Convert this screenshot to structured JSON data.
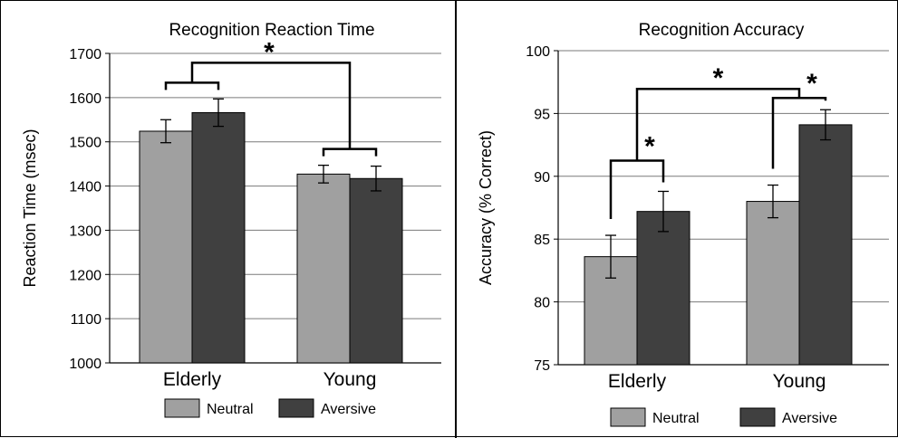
{
  "colors": {
    "neutral": "#a0a0a0",
    "aversive": "#404040",
    "grid": "#7a7a7a",
    "axis": "#000000"
  },
  "chart_data": [
    {
      "type": "bar",
      "title": "Recognition Reaction Time",
      "ylabel": "Reaction Time (msec)",
      "categories": [
        "Elderly",
        "Young"
      ],
      "ylim": [
        1000,
        1700
      ],
      "yticks": [
        1000,
        1100,
        1200,
        1300,
        1400,
        1500,
        1600,
        1700
      ],
      "grid": true,
      "legend": "bottom",
      "series": [
        {
          "name": "Neutral",
          "values": [
            1524,
            1427
          ],
          "errors": [
            26,
            20
          ]
        },
        {
          "name": "Aversive",
          "values": [
            1566,
            1417
          ],
          "errors": [
            31,
            28
          ]
        }
      ],
      "annotations": [
        {
          "text": "*",
          "between": "Elderly vs Young (all conditions)"
        }
      ]
    },
    {
      "type": "bar",
      "title": "Recognition Accuracy",
      "ylabel": "Accuracy (% Correct)",
      "categories": [
        "Elderly",
        "Young"
      ],
      "ylim": [
        75,
        100
      ],
      "yticks": [
        75,
        80,
        85,
        90,
        95,
        100
      ],
      "grid": true,
      "legend": "bottom",
      "series": [
        {
          "name": "Neutral",
          "values": [
            83.6,
            88.0
          ],
          "errors": [
            1.7,
            1.3
          ]
        },
        {
          "name": "Aversive",
          "values": [
            87.2,
            94.1
          ],
          "errors": [
            1.6,
            1.2
          ]
        }
      ],
      "annotations": [
        {
          "text": "*",
          "between": "Elderly Neutral vs Elderly Aversive"
        },
        {
          "text": "*",
          "between": "Young Neutral vs Young Aversive"
        },
        {
          "text": "*",
          "between": "Elderly vs Young"
        }
      ]
    }
  ]
}
